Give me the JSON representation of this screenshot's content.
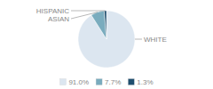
{
  "chart_data": {
    "type": "pie",
    "categories": [
      "WHITE",
      "ASIAN",
      "HISPANIC"
    ],
    "values": [
      91.0,
      7.7,
      1.3
    ],
    "value_labels": [
      "91.0%",
      "7.7%",
      "1.3%"
    ],
    "colors": [
      "#dce6f0",
      "#7aacbe",
      "#1f4e6e"
    ],
    "legend": "bottom"
  }
}
